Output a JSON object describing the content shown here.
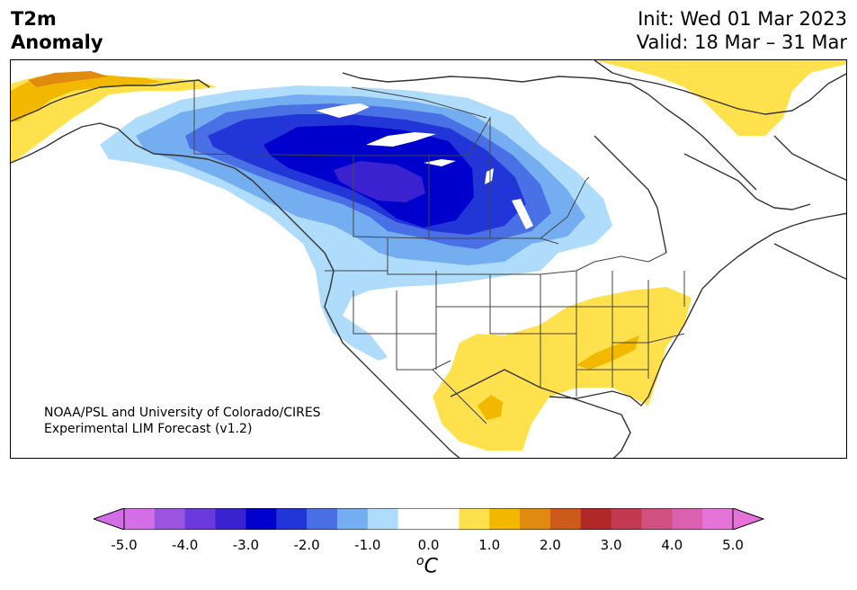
{
  "title": {
    "line1": "T2m",
    "line2": "Anomaly"
  },
  "dates": {
    "init": "Init: Wed 01 Mar 2023",
    "valid": "Valid: 18 Mar – 31 Mar"
  },
  "credit": {
    "line1": "NOAA/PSL and University of Colorado/CIRES",
    "line2": "Experimental LIM Forecast (v1.2)"
  },
  "colorbar": {
    "unit_base": "C",
    "unit_sup": "o",
    "ticks": [
      "-5.0",
      "-4.0",
      "-3.0",
      "-2.0",
      "-1.0",
      "0.0",
      "1.0",
      "2.0",
      "3.0",
      "4.0",
      "5.0"
    ],
    "colors": [
      "#d36ee6",
      "#9a55df",
      "#6a3adc",
      "#3a22d1",
      "#0000cc",
      "#2236d8",
      "#4a70e6",
      "#75aef0",
      "#aedcfa",
      "#ffffff",
      "#ffffff",
      "#ffe14d",
      "#f2b800",
      "#e08a10",
      "#cc5a18",
      "#b02828",
      "#c23a50",
      "#d05080",
      "#dc60b0",
      "#e674d8"
    ],
    "extend_low_color": "#d36ee6",
    "extend_high_color": "#e674d8"
  },
  "map_colors": {
    "ocean": "#ffffff",
    "land": "#ffffff",
    "coast": "#333333",
    "lakes": "#ffffff"
  }
}
